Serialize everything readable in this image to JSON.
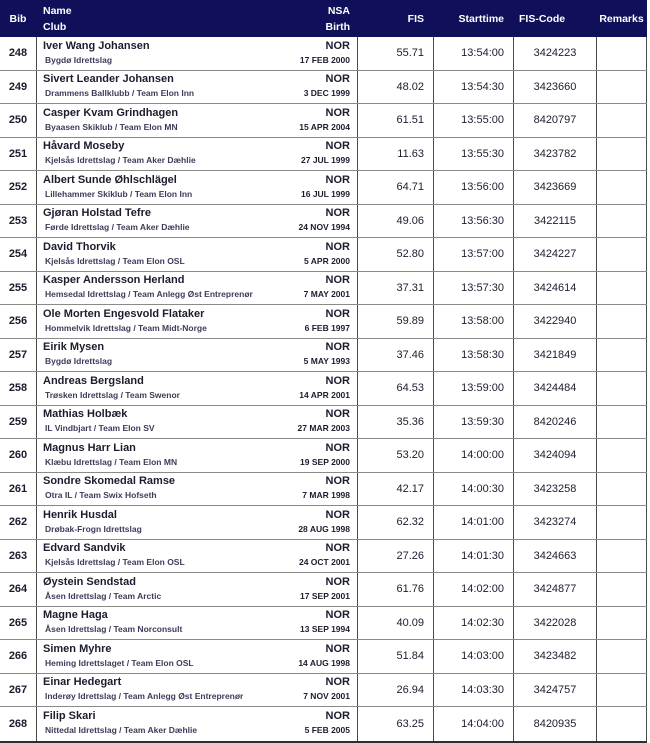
{
  "colors": {
    "header_bg": "#10105a",
    "header_text": "#ffffff",
    "text": "#1c1c2e",
    "club_text": "#3c3c5a",
    "col_border": "#4a4a4a",
    "row_border": "#8a8a8a",
    "bottom_border": "#2f2f2f"
  },
  "header": {
    "bib": "Bib",
    "name": "Name",
    "club": "Club",
    "nsa": "NSA",
    "birth": "Birth",
    "fis": "FIS",
    "starttime": "Starttime",
    "fis_code": "FIS-Code",
    "remarks": "Remarks"
  },
  "rows": [
    {
      "bib": "248",
      "name": "Iver Wang Johansen",
      "club": "Bygdø Idrettslag",
      "nsa": "NOR",
      "birth": "17 FEB 2000",
      "fis": "55.71",
      "starttime": "13:54:00",
      "fis_code": "3424223",
      "remarks": ""
    },
    {
      "bib": "249",
      "name": "Sivert Leander Johansen",
      "club": "Drammens Ballklubb / Team Elon Inn",
      "nsa": "NOR",
      "birth": "3 DEC 1999",
      "fis": "48.02",
      "starttime": "13:54:30",
      "fis_code": "3423660",
      "remarks": ""
    },
    {
      "bib": "250",
      "name": "Casper Kvam Grindhagen",
      "club": "Byaasen Skiklub / Team Elon MN",
      "nsa": "NOR",
      "birth": "15 APR 2004",
      "fis": "61.51",
      "starttime": "13:55:00",
      "fis_code": "8420797",
      "remarks": ""
    },
    {
      "bib": "251",
      "name": "Håvard Moseby",
      "club": "Kjelsås Idrettslag / Team Aker Dæhlie",
      "nsa": "NOR",
      "birth": "27 JUL 1999",
      "fis": "11.63",
      "starttime": "13:55:30",
      "fis_code": "3423782",
      "remarks": ""
    },
    {
      "bib": "252",
      "name": "Albert Sunde Øhlschlägel",
      "club": "Lillehammer Skiklub / Team Elon Inn",
      "nsa": "NOR",
      "birth": "16 JUL 1999",
      "fis": "64.71",
      "starttime": "13:56:00",
      "fis_code": "3423669",
      "remarks": ""
    },
    {
      "bib": "253",
      "name": "Gjøran Holstad Tefre",
      "club": "Førde Idrettslag / Team Aker Dæhlie",
      "nsa": "NOR",
      "birth": "24 NOV 1994",
      "fis": "49.06",
      "starttime": "13:56:30",
      "fis_code": "3422115",
      "remarks": ""
    },
    {
      "bib": "254",
      "name": "David Thorvik",
      "club": "Kjelsås Idrettslag / Team Elon OSL",
      "nsa": "NOR",
      "birth": "5 APR 2000",
      "fis": "52.80",
      "starttime": "13:57:00",
      "fis_code": "3424227",
      "remarks": ""
    },
    {
      "bib": "255",
      "name": "Kasper Andersson Herland",
      "club": "Hemsedal Idrettslag / Team Anlegg Øst Entreprenør",
      "nsa": "NOR",
      "birth": "7 MAY 2001",
      "fis": "37.31",
      "starttime": "13:57:30",
      "fis_code": "3424614",
      "remarks": ""
    },
    {
      "bib": "256",
      "name": "Ole Morten Engesvold Flataker",
      "club": "Hommelvik Idrettslag / Team Midt-Norge",
      "nsa": "NOR",
      "birth": "6 FEB 1997",
      "fis": "59.89",
      "starttime": "13:58:00",
      "fis_code": "3422940",
      "remarks": ""
    },
    {
      "bib": "257",
      "name": "Eirik Mysen",
      "club": "Bygdø Idrettslag",
      "nsa": "NOR",
      "birth": "5 MAY 1993",
      "fis": "37.46",
      "starttime": "13:58:30",
      "fis_code": "3421849",
      "remarks": ""
    },
    {
      "bib": "258",
      "name": "Andreas Bergsland",
      "club": "Trøsken Idrettslag / Team Swenor",
      "nsa": "NOR",
      "birth": "14 APR 2001",
      "fis": "64.53",
      "starttime": "13:59:00",
      "fis_code": "3424484",
      "remarks": ""
    },
    {
      "bib": "259",
      "name": "Mathias Holbæk",
      "club": "IL Vindbjart / Team Elon SV",
      "nsa": "NOR",
      "birth": "27 MAR 2003",
      "fis": "35.36",
      "starttime": "13:59:30",
      "fis_code": "8420246",
      "remarks": ""
    },
    {
      "bib": "260",
      "name": "Magnus Harr Lian",
      "club": "Klæbu Idrettslag / Team Elon MN",
      "nsa": "NOR",
      "birth": "19 SEP 2000",
      "fis": "53.20",
      "starttime": "14:00:00",
      "fis_code": "3424094",
      "remarks": ""
    },
    {
      "bib": "261",
      "name": "Sondre Skomedal Ramse",
      "club": "Otra IL / Team Swix Hofseth",
      "nsa": "NOR",
      "birth": "7 MAR 1998",
      "fis": "42.17",
      "starttime": "14:00:30",
      "fis_code": "3423258",
      "remarks": ""
    },
    {
      "bib": "262",
      "name": "Henrik Husdal",
      "club": "Drøbak-Frogn Idrettslag",
      "nsa": "NOR",
      "birth": "28 AUG 1998",
      "fis": "62.32",
      "starttime": "14:01:00",
      "fis_code": "3423274",
      "remarks": ""
    },
    {
      "bib": "263",
      "name": "Edvard Sandvik",
      "club": "Kjelsås Idrettslag / Team Elon OSL",
      "nsa": "NOR",
      "birth": "24 OCT 2001",
      "fis": "27.26",
      "starttime": "14:01:30",
      "fis_code": "3424663",
      "remarks": ""
    },
    {
      "bib": "264",
      "name": "Øystein Sendstad",
      "club": "Åsen Idrettslag / Team Arctic",
      "nsa": "NOR",
      "birth": "17 SEP 2001",
      "fis": "61.76",
      "starttime": "14:02:00",
      "fis_code": "3424877",
      "remarks": ""
    },
    {
      "bib": "265",
      "name": "Magne Haga",
      "club": "Åsen Idrettslag / Team Norconsult",
      "nsa": "NOR",
      "birth": "13 SEP 1994",
      "fis": "40.09",
      "starttime": "14:02:30",
      "fis_code": "3422028",
      "remarks": ""
    },
    {
      "bib": "266",
      "name": "Simen Myhre",
      "club": "Heming Idrettslaget / Team Elon OSL",
      "nsa": "NOR",
      "birth": "14 AUG 1998",
      "fis": "51.84",
      "starttime": "14:03:00",
      "fis_code": "3423482",
      "remarks": ""
    },
    {
      "bib": "267",
      "name": "Einar Hedegart",
      "club": "Inderøy Idrettslag / Team Anlegg Øst Entreprenør",
      "nsa": "NOR",
      "birth": "7 NOV 2001",
      "fis": "26.94",
      "starttime": "14:03:30",
      "fis_code": "3424757",
      "remarks": ""
    },
    {
      "bib": "268",
      "name": "Filip Skari",
      "club": "Nittedal Idrettslag / Team Aker Dæhlie",
      "nsa": "NOR",
      "birth": "5 FEB 2005",
      "fis": "63.25",
      "starttime": "14:04:00",
      "fis_code": "8420935",
      "remarks": ""
    }
  ]
}
